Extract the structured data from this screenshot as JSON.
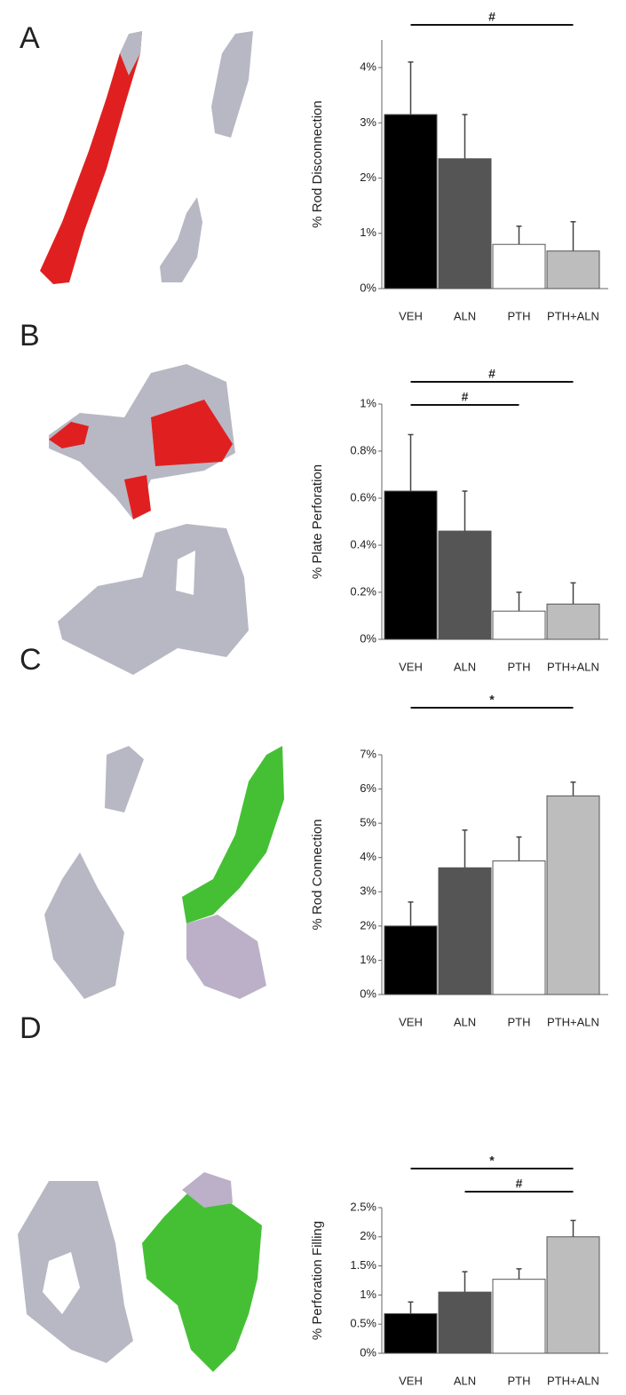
{
  "chart_data": [
    {
      "type": "bar",
      "panel_label": "A",
      "ylabel": "% Rod Disconnection",
      "categories": [
        "VEH",
        "ALN",
        "PTH",
        "PTH+ALN"
      ],
      "values": [
        3.15,
        2.35,
        0.8,
        0.68
      ],
      "errors": [
        0.95,
        0.8,
        0.33,
        0.53
      ],
      "colors": [
        "#000000",
        "#555555",
        "#ffffff",
        "#bdbdbd"
      ],
      "ylim": [
        0,
        4.5
      ],
      "yticks": [
        {
          "value": 0,
          "label": "0%"
        },
        {
          "value": 1,
          "label": "1%"
        },
        {
          "value": 2,
          "label": "2%"
        },
        {
          "value": 3,
          "label": "3%"
        },
        {
          "value": 4,
          "label": "4%"
        }
      ],
      "annotations": [
        {
          "label": "#",
          "from": "VEH",
          "to": "PTH+ALN"
        }
      ]
    },
    {
      "type": "bar",
      "panel_label": "B",
      "ylabel": "% Plate Perforation",
      "categories": [
        "VEH",
        "ALN",
        "PTH",
        "PTH+ALN"
      ],
      "values": [
        0.63,
        0.46,
        0.12,
        0.15
      ],
      "errors": [
        0.24,
        0.17,
        0.08,
        0.09
      ],
      "colors": [
        "#000000",
        "#555555",
        "#ffffff",
        "#bdbdbd"
      ],
      "ylim": [
        0,
        1
      ],
      "yticks": [
        {
          "value": 0,
          "label": "0%"
        },
        {
          "value": 0.2,
          "label": "0.2%"
        },
        {
          "value": 0.4,
          "label": "0.4%"
        },
        {
          "value": 0.6,
          "label": "0.6%"
        },
        {
          "value": 0.8,
          "label": "0.8%"
        },
        {
          "value": 1,
          "label": "1%"
        }
      ],
      "annotations": [
        {
          "label": "#",
          "from": "VEH",
          "to": "PTH+ALN"
        },
        {
          "label": "#",
          "from": "VEH",
          "to": "PTH"
        }
      ]
    },
    {
      "type": "bar",
      "panel_label": "C",
      "ylabel": "% Rod Connection",
      "categories": [
        "VEH",
        "ALN",
        "PTH",
        "PTH+ALN"
      ],
      "values": [
        2.0,
        3.7,
        3.9,
        5.8
      ],
      "errors": [
        0.7,
        1.1,
        0.7,
        0.4
      ],
      "colors": [
        "#000000",
        "#555555",
        "#ffffff",
        "#bdbdbd"
      ],
      "ylim": [
        0,
        7
      ],
      "yticks": [
        {
          "value": 0,
          "label": "0%"
        },
        {
          "value": 1,
          "label": "1%"
        },
        {
          "value": 2,
          "label": "2%"
        },
        {
          "value": 3,
          "label": "3%"
        },
        {
          "value": 4,
          "label": "4%"
        },
        {
          "value": 5,
          "label": "5%"
        },
        {
          "value": 6,
          "label": "6%"
        },
        {
          "value": 7,
          "label": "7%"
        }
      ],
      "annotations": [
        {
          "label": "*",
          "from": "VEH",
          "to": "PTH+ALN"
        }
      ]
    },
    {
      "type": "bar",
      "panel_label": "D",
      "ylabel": "% Perforation Filling",
      "categories": [
        "VEH",
        "ALN",
        "PTH",
        "PTH+ALN"
      ],
      "values": [
        0.68,
        1.05,
        1.27,
        2.0
      ],
      "errors": [
        0.2,
        0.35,
        0.18,
        0.28
      ],
      "colors": [
        "#000000",
        "#555555",
        "#ffffff",
        "#bdbdbd"
      ],
      "ylim": [
        0,
        2.5
      ],
      "yticks": [
        {
          "value": 0,
          "label": "0%"
        },
        {
          "value": 0.5,
          "label": "0.5%"
        },
        {
          "value": 1,
          "label": "1%"
        },
        {
          "value": 1.5,
          "label": "1.5%"
        },
        {
          "value": 2,
          "label": "2%"
        },
        {
          "value": 2.5,
          "label": "2.5%"
        }
      ],
      "annotations": [
        {
          "label": "*",
          "from": "VEH",
          "to": "PTH+ALN"
        },
        {
          "label": "#",
          "from": "ALN",
          "to": "PTH+ALN"
        }
      ]
    }
  ]
}
